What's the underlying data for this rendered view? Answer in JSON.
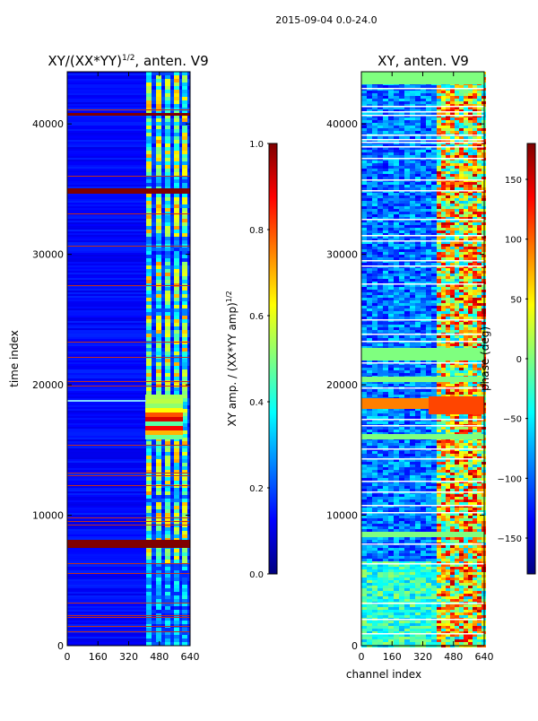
{
  "figure": {
    "suptitle": "2015-09-04 0.0-24.0"
  },
  "chart_data": [
    {
      "type": "heatmap",
      "title": "XY/(XX*YY)^{1/2}, anten. V9",
      "title_main": "XY/(XX*YY)",
      "title_exp": "1/2",
      "title_tail": ", anten. V9",
      "xlabel": "",
      "ylabel": "time index",
      "xlim": [
        0,
        640
      ],
      "ylim": [
        0,
        44000
      ],
      "xticks": [
        0,
        160,
        320,
        480,
        640
      ],
      "yticks": [
        0,
        10000,
        20000,
        30000,
        40000
      ],
      "colorbar": {
        "label": "XY amp. / (XX*YY amp)^{1/2}",
        "label_main": "XY amp. / (XX*YY amp)",
        "label_exp": "1/2",
        "range": [
          0.0,
          1.0
        ],
        "ticks": [
          "0.0",
          "0.2",
          "0.4",
          "0.6",
          "0.8",
          "1.0"
        ]
      }
    },
    {
      "type": "heatmap",
      "title": "XY, anten. V9",
      "xlabel": "channel index",
      "ylabel": "",
      "xlim": [
        0,
        640
      ],
      "ylim": [
        0,
        44000
      ],
      "xticks": [
        0,
        160,
        320,
        480,
        640
      ],
      "yticks": [
        0,
        10000,
        20000,
        30000,
        40000
      ],
      "colorbar": {
        "label": "phase (deg)",
        "range": [
          -180,
          180
        ],
        "ticks": [
          "−150",
          "−100",
          "−50",
          "0",
          "50",
          "100",
          "150"
        ]
      }
    }
  ],
  "colormap": {
    "name": "jet",
    "stops": [
      "#00007f",
      "#0000ff",
      "#007fff",
      "#00ffff",
      "#7fff7f",
      "#ffff00",
      "#ff7f00",
      "#ff0000",
      "#7f0000"
    ]
  }
}
